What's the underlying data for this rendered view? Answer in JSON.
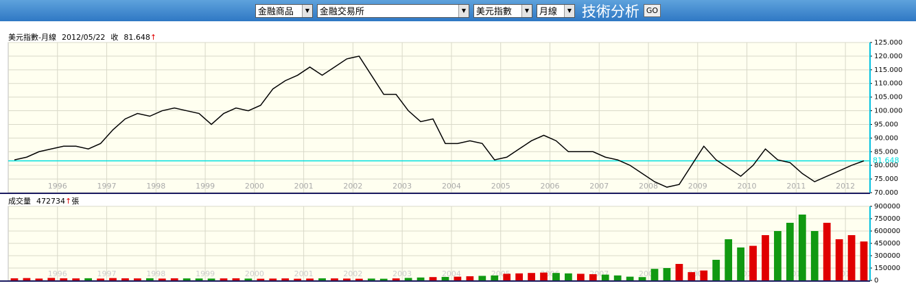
{
  "toolbar": {
    "selects": [
      "金融商品",
      "金融交易所",
      "美元指數",
      "月線"
    ],
    "heading": "技術分析",
    "button": "GO"
  },
  "chart_data": [
    {
      "type": "line",
      "title": "美元指數-月線",
      "date": "2012/05/22",
      "close_text": "收",
      "arrow": "↑",
      "color": "#000000",
      "last_line_color": "#00e0e0",
      "grid": true,
      "categories": [
        null,
        null,
        null,
        null,
        "1996",
        null,
        null,
        null,
        "1997",
        null,
        null,
        null,
        "1998",
        null,
        null,
        null,
        "1999",
        null,
        null,
        null,
        "2000",
        null,
        null,
        null,
        "2001",
        null,
        null,
        null,
        "2002",
        null,
        null,
        null,
        "2003",
        null,
        null,
        null,
        "2004",
        null,
        null,
        null,
        "2005",
        null,
        null,
        null,
        "2006",
        null,
        null,
        null,
        "2007",
        null,
        null,
        null,
        "2008",
        null,
        null,
        null,
        "2009",
        null,
        null,
        null,
        "2010",
        null,
        null,
        null,
        "2011",
        null,
        null,
        null,
        "2012",
        null
      ],
      "values": [
        82,
        83,
        85,
        86,
        87,
        87,
        86,
        88,
        93,
        97,
        99,
        98,
        100,
        101,
        100,
        99,
        95,
        99,
        101,
        100,
        102,
        108,
        111,
        113,
        116,
        113,
        116,
        119,
        120,
        113,
        106,
        106,
        100,
        96,
        97,
        88,
        88,
        89,
        88,
        82,
        83,
        86,
        89,
        91,
        89,
        85,
        85,
        85,
        83,
        82,
        80,
        77,
        74,
        72,
        73,
        80,
        87,
        82,
        79,
        76,
        80,
        86,
        82,
        81,
        77,
        74,
        76,
        78,
        80,
        81.648
      ],
      "ylim": [
        70,
        125
      ],
      "yticks": [
        {
          "value": 70,
          "label": "70.000"
        },
        {
          "value": 75,
          "label": "75.000"
        },
        {
          "value": 80,
          "label": "80.000"
        },
        {
          "value": 85,
          "label": "85.000"
        },
        {
          "value": 90,
          "label": "90.000"
        },
        {
          "value": 95,
          "label": "95.000"
        },
        {
          "value": 100,
          "label": "100.000"
        },
        {
          "value": 105,
          "label": "105.000"
        },
        {
          "value": 110,
          "label": "110.000"
        },
        {
          "value": 115,
          "label": "115.000"
        },
        {
          "value": 120,
          "label": "120.000"
        },
        {
          "value": 125,
          "label": "125.000"
        }
      ]
    },
    {
      "type": "bar",
      "title": "成交量",
      "arrow": "↑",
      "unit": "張",
      "up_color": "#e00000",
      "down_color": "#119911",
      "grid": true,
      "categories": [
        null,
        null,
        null,
        null,
        "1996",
        null,
        null,
        null,
        "1997",
        null,
        null,
        null,
        "1998",
        null,
        null,
        null,
        "1999",
        null,
        null,
        null,
        "2000",
        null,
        null,
        null,
        "2001",
        null,
        null,
        null,
        "2002",
        null,
        null,
        null,
        "2003",
        null,
        null,
        null,
        "2004",
        null,
        null,
        null,
        "2005",
        null,
        null,
        null,
        "2006",
        null,
        null,
        null,
        "2007",
        null,
        null,
        null,
        "2008",
        null,
        null,
        null,
        "2009",
        null,
        null,
        null,
        "2010",
        null,
        null,
        null,
        "2011",
        null,
        null,
        null,
        "2012",
        null
      ],
      "values": [
        25000,
        28000,
        22000,
        30000,
        25000,
        24000,
        26000,
        22000,
        28000,
        25000,
        24000,
        26000,
        22000,
        25000,
        24000,
        23000,
        22000,
        24000,
        25000,
        22000,
        20000,
        22000,
        24000,
        20000,
        22000,
        25000,
        24000,
        22000,
        20000,
        22000,
        20000,
        24000,
        30000,
        35000,
        40000,
        42000,
        45000,
        50000,
        55000,
        60000,
        80000,
        85000,
        90000,
        95000,
        90000,
        85000,
        80000,
        75000,
        70000,
        60000,
        45000,
        40000,
        140000,
        150000,
        200000,
        100000,
        120000,
        250000,
        500000,
        400000,
        420000,
        550000,
        600000,
        700000,
        800000,
        600000,
        700000,
        500000,
        550000,
        472734
      ],
      "ylim": [
        0,
        900000
      ],
      "yticks": [
        0,
        150000,
        300000,
        450000,
        600000,
        750000,
        900000
      ]
    }
  ]
}
